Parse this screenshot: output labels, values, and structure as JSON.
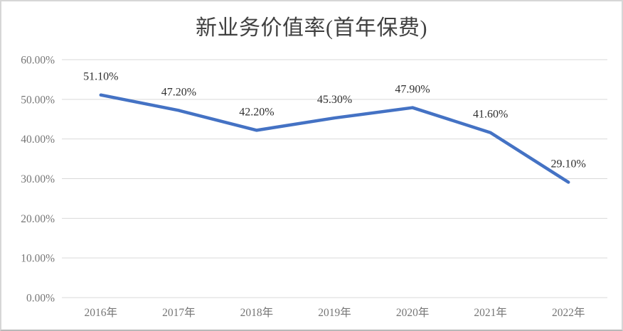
{
  "page": {
    "background": "#ffffff",
    "border_color": "#d6d6d6"
  },
  "chart_data": {
    "type": "line",
    "title": "新业务价值率(首年保费)",
    "categories": [
      "2016年",
      "2017年",
      "2018年",
      "2019年",
      "2020年",
      "2021年",
      "2022年"
    ],
    "series": [
      {
        "name": "新业务价值率(首年保费)",
        "values": [
          51.1,
          47.2,
          42.2,
          45.3,
          47.9,
          41.6,
          29.1
        ],
        "point_labels": [
          "51.10%",
          "47.20%",
          "42.20%",
          "45.30%",
          "47.90%",
          "41.60%",
          "29.10%"
        ],
        "color": "#4472C4"
      }
    ],
    "xlabel": "",
    "ylabel": "",
    "ylim": [
      0,
      60
    ],
    "yticks": {
      "values": [
        0,
        10,
        20,
        30,
        40,
        50,
        60
      ],
      "labels": [
        "0.00%",
        "10.00%",
        "20.00%",
        "30.00%",
        "40.00%",
        "50.00%",
        "60.00%"
      ]
    },
    "grid": true,
    "legend_position": "none",
    "gridline_color": "#d9d9d9",
    "axis_text_color": "#767676",
    "data_label_color": "#303030",
    "title_color": "#404040"
  }
}
